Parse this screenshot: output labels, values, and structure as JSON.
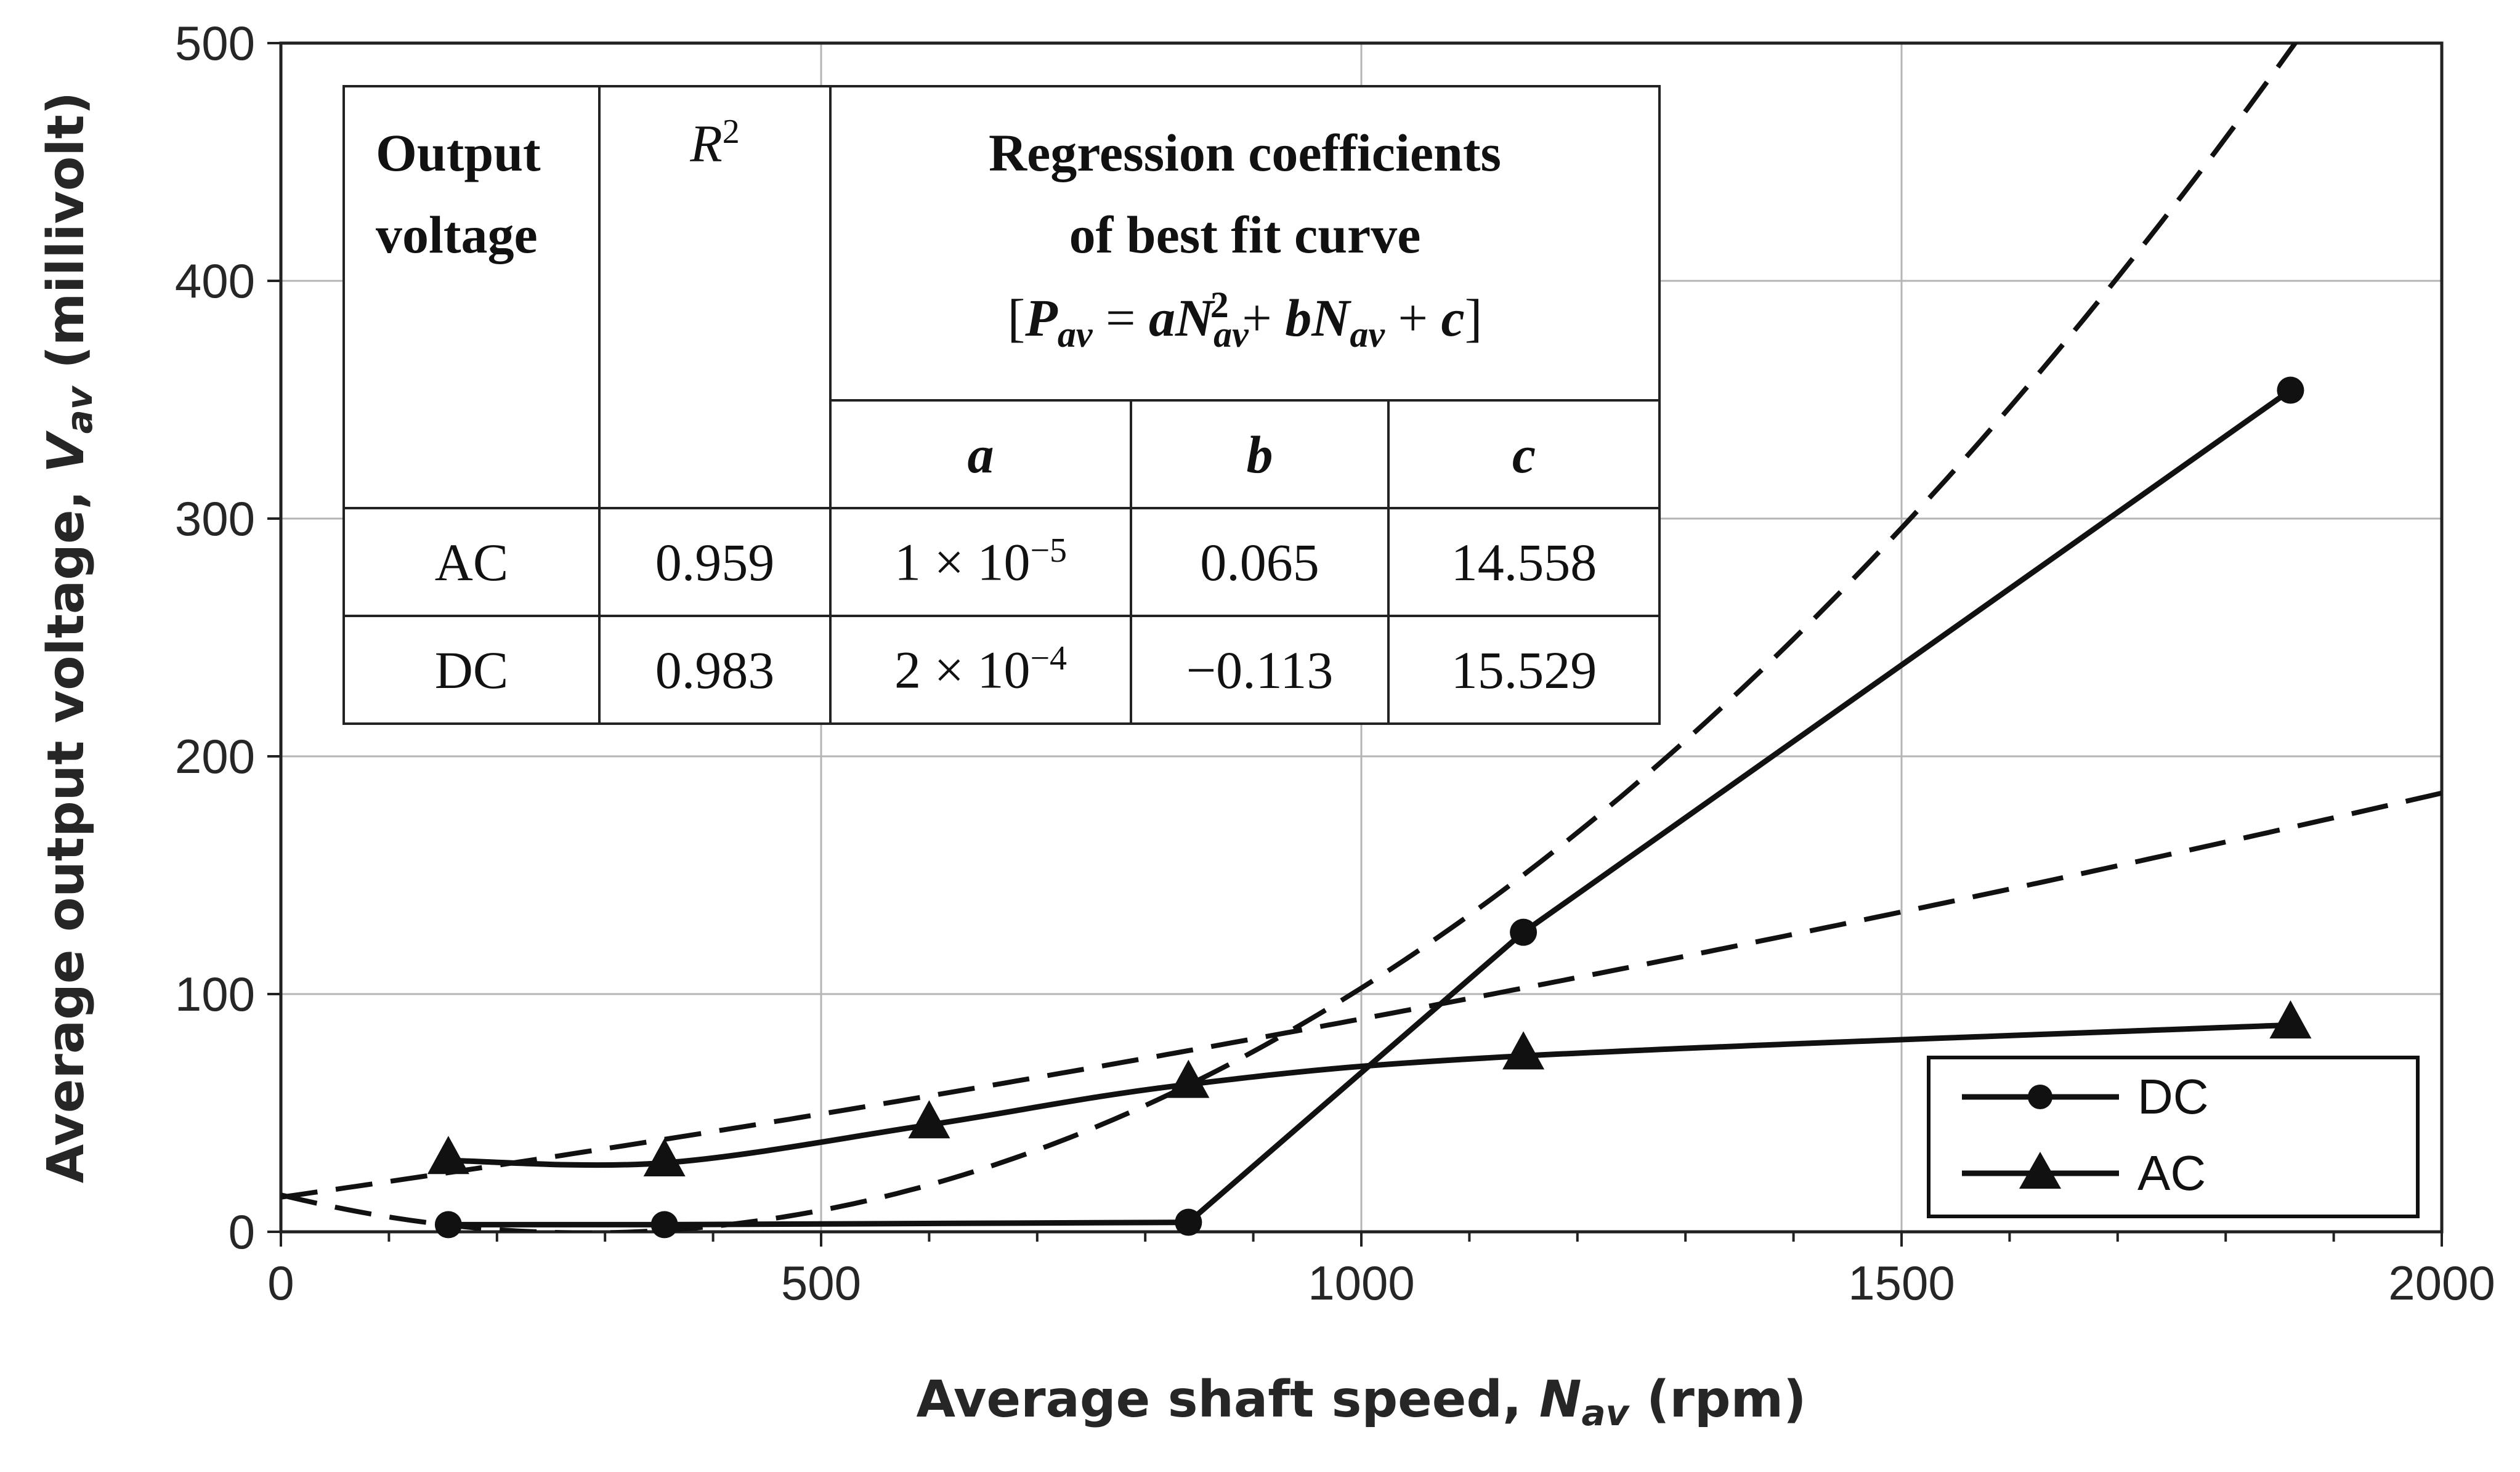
{
  "chart_data": {
    "type": "line",
    "xlabel": "Average shaft speed, N_av (rpm)",
    "ylabel": "Average output voltage, V_av (millivolt)",
    "xlabel_parts": {
      "pre": "Average shaft speed, ",
      "var": "N",
      "sub": "av",
      "post": " (rpm)"
    },
    "ylabel_parts": {
      "pre": "Average output voltage, ",
      "var": "V",
      "sub": "av",
      "post": " (millivolt)"
    },
    "xlim": [
      0,
      2000
    ],
    "ylim": [
      0,
      500
    ],
    "x_ticks": [
      0,
      500,
      1000,
      1500,
      2000
    ],
    "y_ticks": [
      0,
      100,
      200,
      300,
      400,
      500
    ],
    "x_tick_labels": [
      "0",
      "500",
      "1000",
      "1500",
      "2000"
    ],
    "y_tick_labels": [
      "0",
      "100",
      "200",
      "300",
      "400",
      "500"
    ],
    "grid": true,
    "legend_position": "bottom-right",
    "series": [
      {
        "name": "DC",
        "marker": "circle",
        "x": [
          155,
          355,
          840,
          1150,
          1860
        ],
        "y": [
          3,
          3,
          4,
          126,
          354
        ]
      },
      {
        "name": "AC",
        "marker": "triangle",
        "x": [
          155,
          355,
          600,
          840,
          1150,
          1860
        ],
        "y": [
          30,
          29,
          45,
          62,
          74,
          87
        ]
      }
    ],
    "fit_curves": [
      {
        "name": "DC best fit",
        "a": 0.0002,
        "b": -0.113,
        "c": 15.529
      },
      {
        "name": "AC best fit",
        "a": 1e-05,
        "b": 0.065,
        "c": 14.558
      }
    ]
  },
  "table": {
    "header": {
      "col1": "Output voltage",
      "col1_line1": "Output",
      "col1_line2": "voltage",
      "col2": "R",
      "col2_sup": "2",
      "col3_line1": "Regression coefficients",
      "col3_line2": "of best fit curve",
      "formula": "[P_av = aN_av^2 + bN_av + c]",
      "sub_a": "a",
      "sub_b": "b",
      "sub_c": "c"
    },
    "rows": [
      {
        "label": "AC",
        "r2": "0.959",
        "a": "1 × 10",
        "a_exp": "−5",
        "b": "0.065",
        "c": "14.558"
      },
      {
        "label": "DC",
        "r2": "0.983",
        "a": "2 × 10",
        "a_exp": "−4",
        "b": "−0.113",
        "c": "15.529"
      }
    ]
  }
}
